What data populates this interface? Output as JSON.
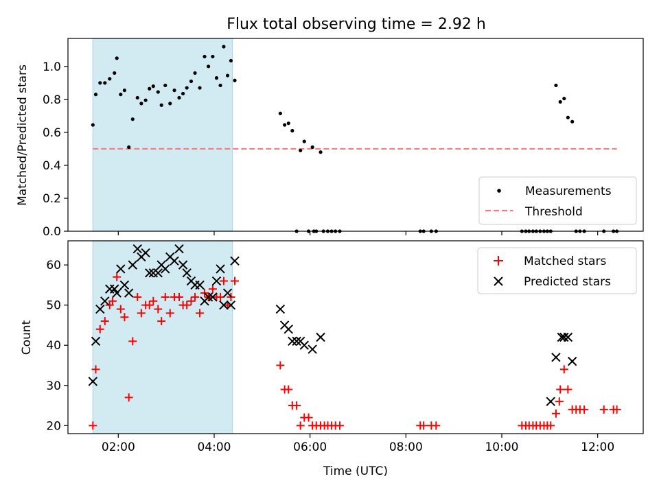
{
  "chart_data": [
    {
      "type": "scatter",
      "title": "Flux total observing time = 2.92 h",
      "xlabel": "",
      "ylabel": "Matched/Predicted stars",
      "xlim_hours": [
        0.95,
        12.95
      ],
      "ylim": [
        0,
        1.17
      ],
      "yticks": [
        "0.0",
        "0.2",
        "0.4",
        "0.6",
        "0.8",
        "1.0"
      ],
      "ytick_values": [
        0,
        0.2,
        0.4,
        0.6,
        0.8,
        1.0
      ],
      "highlight_span_hours": [
        1.47,
        4.38
      ],
      "highlight_color": "#add8e6",
      "legend_position": "lower right",
      "series": [
        {
          "name": "Measurements",
          "marker": "dot",
          "color": "#000000",
          "points": [
            [
              1.47,
              0.645
            ],
            [
              1.53,
              0.83
            ],
            [
              1.62,
              0.9
            ],
            [
              1.72,
              0.9
            ],
            [
              1.82,
              0.925
            ],
            [
              1.92,
              0.96
            ],
            [
              1.97,
              1.05
            ],
            [
              2.05,
              0.83
            ],
            [
              2.13,
              0.855
            ],
            [
              2.22,
              0.51
            ],
            [
              2.3,
              0.68
            ],
            [
              2.4,
              0.81
            ],
            [
              2.48,
              0.775
            ],
            [
              2.57,
              0.795
            ],
            [
              2.65,
              0.865
            ],
            [
              2.73,
              0.88
            ],
            [
              2.83,
              0.845
            ],
            [
              2.9,
              0.765
            ],
            [
              2.98,
              0.885
            ],
            [
              3.08,
              0.775
            ],
            [
              3.17,
              0.855
            ],
            [
              3.27,
              0.81
            ],
            [
              3.35,
              0.835
            ],
            [
              3.43,
              0.87
            ],
            [
              3.52,
              0.91
            ],
            [
              3.6,
              0.96
            ],
            [
              3.7,
              0.87
            ],
            [
              3.8,
              1.06
            ],
            [
              3.88,
              1.0
            ],
            [
              3.97,
              1.06
            ],
            [
              4.05,
              0.93
            ],
            [
              4.13,
              0.885
            ],
            [
              4.2,
              1.12
            ],
            [
              4.28,
              0.945
            ],
            [
              4.35,
              1.035
            ],
            [
              4.43,
              0.915
            ],
            [
              5.38,
              0.715
            ],
            [
              5.47,
              0.645
            ],
            [
              5.55,
              0.655
            ],
            [
              5.63,
              0.61
            ],
            [
              5.72,
              0.0
            ],
            [
              5.8,
              0.49
            ],
            [
              5.88,
              0.545
            ],
            [
              5.97,
              0.0
            ],
            [
              6.05,
              0.51
            ],
            [
              6.08,
              0.0
            ],
            [
              6.13,
              0.0
            ],
            [
              6.22,
              0.48
            ],
            [
              6.28,
              0.0
            ],
            [
              6.37,
              0.0
            ],
            [
              6.45,
              0.0
            ],
            [
              6.53,
              0.0
            ],
            [
              6.62,
              0.0
            ],
            [
              8.3,
              0.0
            ],
            [
              8.37,
              0.0
            ],
            [
              8.53,
              0.0
            ],
            [
              8.63,
              0.0
            ],
            [
              10.42,
              0.0
            ],
            [
              10.5,
              0.0
            ],
            [
              10.57,
              0.0
            ],
            [
              10.65,
              0.0
            ],
            [
              10.72,
              0.0
            ],
            [
              10.8,
              0.0
            ],
            [
              10.88,
              0.0
            ],
            [
              10.95,
              0.0
            ],
            [
              11.02,
              0.0
            ],
            [
              11.13,
              0.885
            ],
            [
              11.22,
              0.785
            ],
            [
              11.3,
              0.805
            ],
            [
              11.38,
              0.69
            ],
            [
              11.47,
              0.665
            ],
            [
              11.55,
              0.0
            ],
            [
              11.63,
              0.0
            ],
            [
              11.72,
              0.0
            ],
            [
              12.13,
              0.0
            ],
            [
              12.33,
              0.0
            ],
            [
              12.4,
              0.0
            ]
          ]
        },
        {
          "name": "Threshold",
          "line_style": "dashed",
          "color": "#f08080",
          "x_range_hours": [
            1.47,
            12.4
          ],
          "value": 0.5
        }
      ]
    },
    {
      "type": "scatter",
      "title": "",
      "xlabel": "Time (UTC)",
      "ylabel": "Count",
      "xlim_hours": [
        0.95,
        12.95
      ],
      "ylim": [
        18,
        66
      ],
      "xticks": [
        "02:00",
        "04:00",
        "06:00",
        "08:00",
        "10:00",
        "12:00"
      ],
      "xtick_values": [
        2,
        4,
        6,
        8,
        10,
        12
      ],
      "yticks": [
        "20",
        "30",
        "40",
        "50",
        "60"
      ],
      "ytick_values": [
        20,
        30,
        40,
        50,
        60
      ],
      "highlight_span_hours": [
        1.47,
        4.38
      ],
      "highlight_color": "#add8e6",
      "legend_position": "upper right",
      "series": [
        {
          "name": "Matched stars",
          "marker": "plus",
          "color": "#ff0000",
          "points": [
            [
              1.47,
              20
            ],
            [
              1.53,
              34
            ],
            [
              1.62,
              44
            ],
            [
              1.72,
              46
            ],
            [
              1.82,
              50
            ],
            [
              1.88,
              51
            ],
            [
              1.97,
              57
            ],
            [
              2.05,
              49
            ],
            [
              2.13,
              47
            ],
            [
              2.22,
              27
            ],
            [
              2.3,
              41
            ],
            [
              2.4,
              52
            ],
            [
              2.48,
              48
            ],
            [
              2.57,
              50
            ],
            [
              2.65,
              50
            ],
            [
              2.73,
              51
            ],
            [
              2.83,
              49
            ],
            [
              2.9,
              46
            ],
            [
              2.98,
              52
            ],
            [
              3.08,
              48
            ],
            [
              3.17,
              52
            ],
            [
              3.27,
              52
            ],
            [
              3.35,
              50
            ],
            [
              3.43,
              50
            ],
            [
              3.52,
              51
            ],
            [
              3.6,
              52
            ],
            [
              3.7,
              48
            ],
            [
              3.8,
              53
            ],
            [
              3.88,
              52
            ],
            [
              3.97,
              54
            ],
            [
              4.05,
              52
            ],
            [
              4.13,
              52
            ],
            [
              4.2,
              56
            ],
            [
              4.28,
              50
            ],
            [
              4.35,
              52
            ],
            [
              4.43,
              56
            ],
            [
              5.38,
              35
            ],
            [
              5.47,
              29
            ],
            [
              5.55,
              29
            ],
            [
              5.63,
              25
            ],
            [
              5.72,
              25
            ],
            [
              5.8,
              20
            ],
            [
              5.88,
              22
            ],
            [
              5.97,
              22
            ],
            [
              6.05,
              20
            ],
            [
              6.13,
              20
            ],
            [
              6.22,
              20
            ],
            [
              6.3,
              20
            ],
            [
              6.37,
              20
            ],
            [
              6.45,
              20
            ],
            [
              6.53,
              20
            ],
            [
              6.62,
              20
            ],
            [
              8.3,
              20
            ],
            [
              8.37,
              20
            ],
            [
              8.53,
              20
            ],
            [
              8.63,
              20
            ],
            [
              10.42,
              20
            ],
            [
              10.5,
              20
            ],
            [
              10.57,
              20
            ],
            [
              10.65,
              20
            ],
            [
              10.72,
              20
            ],
            [
              10.8,
              20
            ],
            [
              10.88,
              20
            ],
            [
              10.95,
              20
            ],
            [
              11.02,
              20
            ],
            [
              11.13,
              23
            ],
            [
              11.2,
              26
            ],
            [
              11.22,
              29
            ],
            [
              11.3,
              34
            ],
            [
              11.38,
              29
            ],
            [
              11.47,
              24
            ],
            [
              11.55,
              24
            ],
            [
              11.63,
              24
            ],
            [
              11.72,
              24
            ],
            [
              12.13,
              24
            ],
            [
              12.33,
              24
            ],
            [
              12.4,
              24
            ]
          ]
        },
        {
          "name": "Predicted stars",
          "marker": "x",
          "color": "#000000",
          "points": [
            [
              1.47,
              31
            ],
            [
              1.53,
              41
            ],
            [
              1.62,
              49
            ],
            [
              1.72,
              51
            ],
            [
              1.82,
              54
            ],
            [
              1.92,
              54
            ],
            [
              1.97,
              53
            ],
            [
              2.05,
              59
            ],
            [
              2.13,
              55
            ],
            [
              2.22,
              53
            ],
            [
              2.3,
              60
            ],
            [
              2.4,
              64
            ],
            [
              2.48,
              62
            ],
            [
              2.57,
              63
            ],
            [
              2.65,
              58
            ],
            [
              2.73,
              58
            ],
            [
              2.83,
              58
            ],
            [
              2.9,
              60
            ],
            [
              2.98,
              59
            ],
            [
              3.08,
              62
            ],
            [
              3.17,
              61
            ],
            [
              3.27,
              64
            ],
            [
              3.35,
              60
            ],
            [
              3.43,
              58
            ],
            [
              3.52,
              56
            ],
            [
              3.6,
              55
            ],
            [
              3.7,
              55
            ],
            [
              3.8,
              51
            ],
            [
              3.88,
              52
            ],
            [
              3.97,
              52
            ],
            [
              4.05,
              56
            ],
            [
              4.13,
              59
            ],
            [
              4.2,
              50
            ],
            [
              4.28,
              53
            ],
            [
              4.35,
              50
            ],
            [
              4.43,
              61
            ],
            [
              5.38,
              49
            ],
            [
              5.47,
              45
            ],
            [
              5.55,
              44
            ],
            [
              5.63,
              41
            ],
            [
              5.72,
              41
            ],
            [
              5.8,
              41
            ],
            [
              5.88,
              40
            ],
            [
              6.05,
              39
            ],
            [
              6.22,
              42
            ],
            [
              11.02,
              26
            ],
            [
              11.13,
              37
            ],
            [
              11.25,
              42
            ],
            [
              11.3,
              42
            ],
            [
              11.38,
              42
            ],
            [
              11.47,
              36
            ]
          ]
        }
      ]
    }
  ]
}
